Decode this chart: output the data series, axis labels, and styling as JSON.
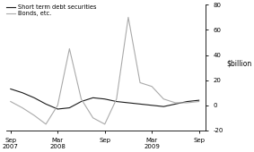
{
  "x_labels": [
    "Sep\n2007",
    "Mar\n2008",
    "Sep",
    "Mar\n2009",
    "Sep"
  ],
  "x_positions": [
    0,
    1,
    2,
    3,
    4
  ],
  "short_term_x": [
    0,
    0.25,
    0.5,
    0.75,
    1.0,
    1.25,
    1.5,
    1.75,
    2.0,
    2.25,
    2.5,
    2.75,
    3.0,
    3.25,
    3.5,
    3.75,
    4.0
  ],
  "short_term_y": [
    13,
    10,
    6,
    1,
    -3,
    -2,
    3,
    6,
    5,
    3,
    2,
    1,
    0,
    -1,
    1,
    3,
    4
  ],
  "bonds_x": [
    0,
    0.25,
    0.5,
    0.75,
    1.0,
    1.25,
    1.5,
    1.75,
    2.0,
    2.25,
    2.5,
    2.75,
    3.0,
    3.25,
    3.5,
    3.75,
    4.0
  ],
  "bonds_y": [
    3,
    -2,
    -8,
    -15,
    0,
    45,
    5,
    -10,
    -15,
    5,
    70,
    18,
    15,
    5,
    2,
    2,
    3
  ],
  "ylim": [
    -20,
    80
  ],
  "yticks": [
    -20,
    0,
    20,
    40,
    60,
    80
  ],
  "ylabel": "$billion",
  "short_term_color": "#1a1a1a",
  "bonds_color": "#aaaaaa",
  "legend_short": "Short term debt securities",
  "legend_bonds": "Bonds, etc.",
  "background_color": "#ffffff"
}
